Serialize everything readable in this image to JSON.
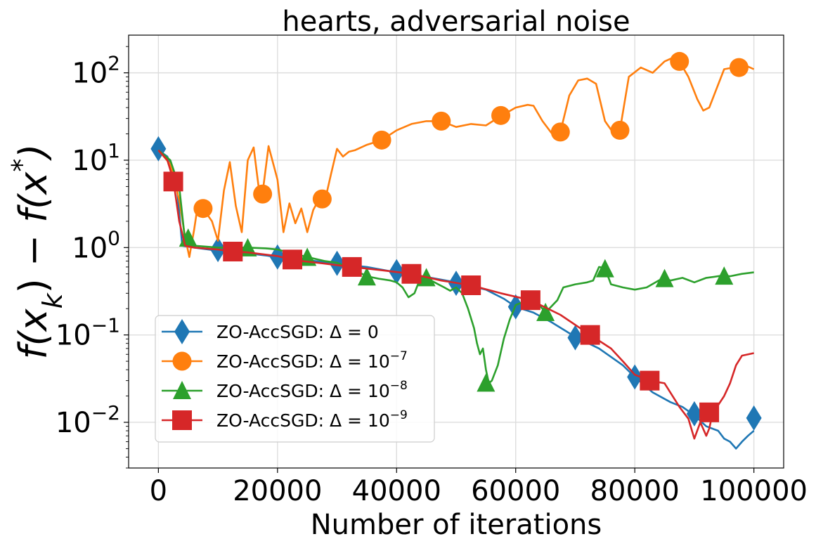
{
  "chart_data": {
    "type": "line",
    "title": "hearts, adversarial noise",
    "xlabel": "Number of iterations",
    "ylabel": "f(x_k) − f(x*)",
    "xlim": [
      -5000,
      105000
    ],
    "ylim": [
      0.003,
      270
    ],
    "yscale": "log",
    "grid": true,
    "legend_position": "lower-left",
    "x_ticks": [
      {
        "value": 0,
        "label": "0"
      },
      {
        "value": 20000,
        "label": "20000"
      },
      {
        "value": 40000,
        "label": "40000"
      },
      {
        "value": 60000,
        "label": "60000"
      },
      {
        "value": 80000,
        "label": "80000"
      },
      {
        "value": 100000,
        "label": "100000"
      }
    ],
    "y_ticks": [
      {
        "value": 0.01,
        "base": "10",
        "exp": "−2"
      },
      {
        "value": 0.1,
        "base": "10",
        "exp": "−1"
      },
      {
        "value": 1,
        "base": "10",
        "exp": "0"
      },
      {
        "value": 10,
        "base": "10",
        "exp": "1"
      },
      {
        "value": 100,
        "base": "10",
        "exp": "2"
      }
    ],
    "series": [
      {
        "name": "ZO-AccSGD: Δ = 0",
        "legend_prefix": "ZO-AccSGD: Δ = 0",
        "legend_exp": "",
        "color": "#1f77b4",
        "marker": "diamond",
        "x": [
          0,
          1500,
          3000,
          4000,
          6000,
          10000,
          15000,
          20000,
          25000,
          30000,
          35000,
          40000,
          45000,
          50000,
          55000,
          58000,
          60000,
          63000,
          66000,
          70000,
          74000,
          78000,
          80000,
          83000,
          86000,
          88000,
          90000,
          92000,
          94000,
          95000,
          96000,
          97000,
          98000,
          99000,
          100000
        ],
        "y": [
          13,
          11,
          6,
          1.05,
          1.0,
          0.92,
          0.86,
          0.78,
          0.72,
          0.65,
          0.6,
          0.52,
          0.46,
          0.4,
          0.33,
          0.26,
          0.21,
          0.18,
          0.14,
          0.095,
          0.07,
          0.045,
          0.033,
          0.022,
          0.017,
          0.015,
          0.012,
          0.009,
          0.008,
          0.0065,
          0.006,
          0.005,
          0.006,
          0.007,
          0.008
        ],
        "marker_x": [
          0,
          10000,
          20000,
          30000,
          40000,
          50000,
          60000,
          70000,
          80000,
          90000,
          100000
        ],
        "marker_y": [
          13.5,
          0.95,
          0.78,
          0.66,
          0.53,
          0.39,
          0.21,
          0.093,
          0.033,
          0.0125,
          0.0112
        ]
      },
      {
        "name": "ZO-AccSGD: Δ = 10^−7",
        "legend_prefix": "ZO-AccSGD: Δ = 10",
        "legend_exp": "−7",
        "color": "#ff7f0e",
        "marker": "circle",
        "x": [
          0,
          2000,
          3500,
          4500,
          5200,
          6000,
          6500,
          7500,
          9000,
          10000,
          11000,
          12000,
          13000,
          14000,
          15000,
          16000,
          17000,
          17500,
          18500,
          20000,
          21000,
          22000,
          23000,
          24000,
          25000,
          26000,
          27000,
          28000,
          29000,
          30000,
          31000,
          32000,
          33000,
          35000,
          37500,
          40000,
          42500,
          45000,
          47500,
          50000,
          52500,
          55000,
          57500,
          60000,
          62000,
          63000,
          64500,
          66000,
          67500,
          69000,
          70500,
          72000,
          73500,
          75000,
          76500,
          77500,
          79000,
          81000,
          83000,
          85000,
          86500,
          87500,
          89000,
          90500,
          91500,
          92500,
          93500,
          95000,
          96500,
          97500,
          99000,
          100000
        ],
        "y": [
          13,
          9,
          3.5,
          1.3,
          0.78,
          1.6,
          2.7,
          2.8,
          2.0,
          1.2,
          4.5,
          9.5,
          3.0,
          1.5,
          10.0,
          14.0,
          4.0,
          4.2,
          14.5,
          6.0,
          1.5,
          3.2,
          1.9,
          2.8,
          1.5,
          2.7,
          3.6,
          3.5,
          7.0,
          13.5,
          11.0,
          12.5,
          13.0,
          15.0,
          17.0,
          22.0,
          26.0,
          28.0,
          28.0,
          24.0,
          26.0,
          25.0,
          32.0,
          40.0,
          43.0,
          42.0,
          28.0,
          20.5,
          21.0,
          55.0,
          82.0,
          86.0,
          75.0,
          28.0,
          20.0,
          22.0,
          90.0,
          115.0,
          100.0,
          135.0,
          150.0,
          135.0,
          90.0,
          50.0,
          37.0,
          40.0,
          60.0,
          110.0,
          115.0,
          118.0,
          118.0,
          110.0
        ],
        "marker_x": [
          7500,
          17500,
          27500,
          37500,
          47500,
          57500,
          67500,
          77500,
          87500,
          97500
        ],
        "marker_y": [
          2.8,
          4.1,
          3.6,
          17.0,
          28.0,
          32.5,
          21.0,
          22.0,
          135.0,
          115.0
        ]
      },
      {
        "name": "ZO-AccSGD: Δ = 10^−8",
        "legend_prefix": "ZO-AccSGD: Δ = 10",
        "legend_exp": "−8",
        "color": "#2ca02c",
        "marker": "triangle",
        "x": [
          0,
          2000,
          3500,
          4500,
          6000,
          10000,
          15000,
          18000,
          20000,
          25000,
          28000,
          30000,
          33000,
          35000,
          37000,
          39000,
          40000,
          41000,
          42000,
          43000,
          44000,
          45000,
          47000,
          48000,
          49000,
          50000,
          51000,
          52000,
          53000,
          53500,
          54000,
          54500,
          55000,
          55500,
          56000,
          57000,
          58000,
          59000,
          60000,
          62000,
          64000,
          65000,
          67000,
          68000,
          70000,
          72000,
          73000,
          74000,
          75000,
          76000,
          78000,
          80000,
          82000,
          84000,
          85000,
          86000,
          88000,
          90000,
          92000,
          94000,
          95000,
          96000,
          98000,
          100000
        ],
        "y": [
          13,
          10,
          5,
          1.15,
          1.05,
          1.0,
          1.0,
          0.98,
          0.95,
          0.78,
          0.7,
          0.67,
          0.55,
          0.47,
          0.44,
          0.42,
          0.4,
          0.35,
          0.27,
          0.3,
          0.45,
          0.45,
          0.38,
          0.35,
          0.32,
          0.35,
          0.3,
          0.2,
          0.12,
          0.08,
          0.06,
          0.07,
          0.04,
          0.028,
          0.03,
          0.045,
          0.09,
          0.15,
          0.22,
          0.25,
          0.22,
          0.18,
          0.25,
          0.35,
          0.38,
          0.4,
          0.42,
          0.6,
          0.58,
          0.38,
          0.35,
          0.33,
          0.35,
          0.42,
          0.45,
          0.42,
          0.45,
          0.4,
          0.45,
          0.47,
          0.48,
          0.47,
          0.5,
          0.52
        ],
        "marker_x": [
          5000,
          15000,
          25000,
          35000,
          45000,
          55000,
          65000,
          75000,
          85000,
          95000
        ],
        "marker_y": [
          1.28,
          0.99,
          0.77,
          0.46,
          0.45,
          0.028,
          0.18,
          0.57,
          0.44,
          0.47
        ]
      },
      {
        "name": "ZO-AccSGD: Δ = 10^−9",
        "legend_prefix": "ZO-AccSGD: Δ = 10",
        "legend_exp": "−9",
        "color": "#d62728",
        "marker": "square",
        "x": [
          0,
          1500,
          2500,
          3500,
          4500,
          6000,
          10000,
          12500,
          15000,
          20000,
          22500,
          27500,
          32500,
          37500,
          42500,
          47500,
          52500,
          57500,
          62500,
          67500,
          72500,
          76000,
          78000,
          80000,
          82500,
          85000,
          87500,
          89000,
          90000,
          91000,
          92000,
          92500,
          93000,
          93500,
          95000,
          96000,
          97000,
          98000,
          100000
        ],
        "y": [
          13,
          10,
          6,
          2.0,
          1.05,
          1.0,
          0.95,
          0.9,
          0.88,
          0.8,
          0.72,
          0.66,
          0.6,
          0.55,
          0.5,
          0.42,
          0.37,
          0.3,
          0.25,
          0.17,
          0.1,
          0.07,
          0.05,
          0.035,
          0.03,
          0.028,
          0.015,
          0.011,
          0.0065,
          0.01,
          0.007,
          0.0085,
          0.012,
          0.014,
          0.02,
          0.028,
          0.045,
          0.058,
          0.062
        ],
        "marker_x": [
          2500,
          12500,
          22500,
          32500,
          42500,
          52500,
          62500,
          72500,
          82500,
          92500
        ],
        "marker_y": [
          5.7,
          0.9,
          0.73,
          0.6,
          0.5,
          0.37,
          0.25,
          0.1,
          0.03,
          0.013
        ]
      }
    ]
  }
}
